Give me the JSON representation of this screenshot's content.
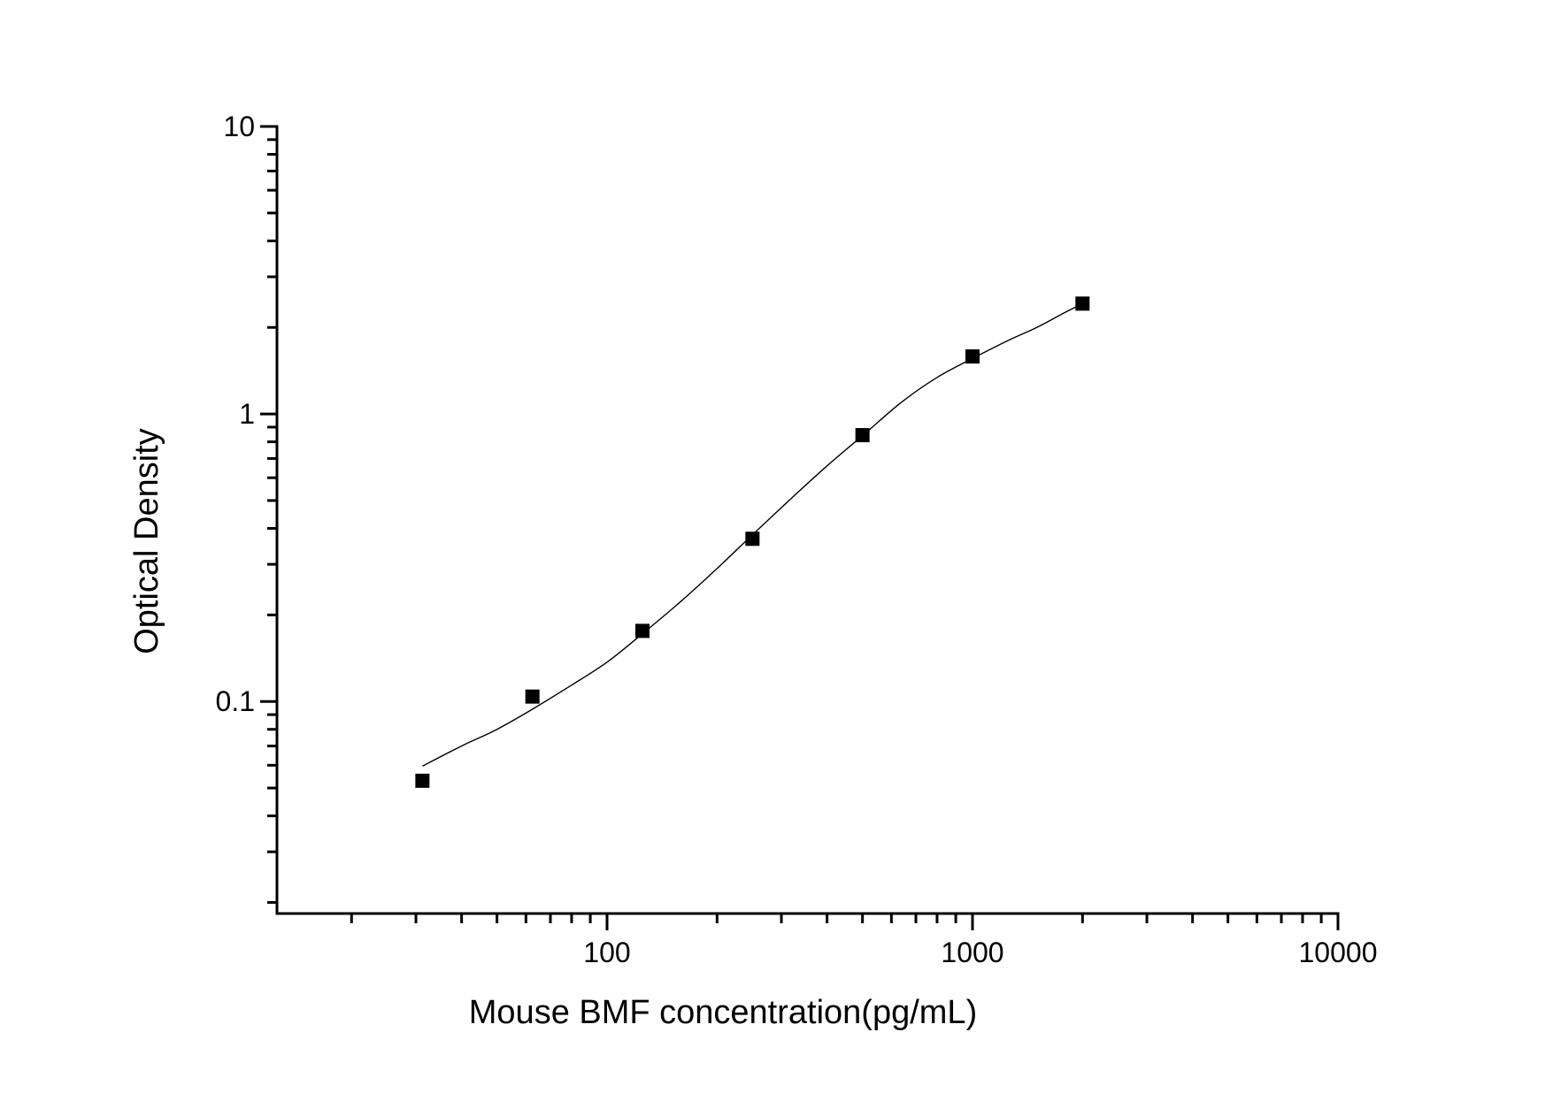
{
  "chart_data": {
    "type": "scatter",
    "title": "",
    "xlabel": "Mouse BMF concentration(pg/mL)",
    "ylabel": "Optical Density",
    "xscale": "log",
    "yscale": "log",
    "xlim": [
      12.5,
      10000
    ],
    "ylim": [
      0.0183,
      10
    ],
    "grid": false,
    "legend": null,
    "x_ticks": [
      {
        "value": 100,
        "label": "100"
      },
      {
        "value": 1000,
        "label": "1000"
      },
      {
        "value": 10000,
        "label": "10000"
      }
    ],
    "y_ticks": [
      {
        "value": 0.1,
        "label": "0.1"
      },
      {
        "value": 1,
        "label": "1"
      },
      {
        "value": 10,
        "label": "10"
      }
    ],
    "series": [
      {
        "name": "Standard points",
        "marker": "square",
        "color": "#000000",
        "x": [
          31.25,
          62.5,
          125,
          250,
          500,
          1000,
          2000
        ],
        "y": [
          0.053,
          0.104,
          0.176,
          0.368,
          0.844,
          1.585,
          2.42
        ]
      },
      {
        "name": "Fitted curve",
        "marker": "none",
        "line": "solid",
        "color": "#000000",
        "x": [
          31.25,
          40,
          50,
          62.5,
          80,
          100,
          125,
          160,
          200,
          250,
          320,
          400,
          500,
          640,
          800,
          1000,
          1250,
          1500,
          1750,
          2000
        ],
        "y": [
          0.0596,
          0.07,
          0.08,
          0.094,
          0.114,
          0.137,
          0.172,
          0.224,
          0.29,
          0.38,
          0.51,
          0.66,
          0.84,
          1.1,
          1.34,
          1.56,
          1.8,
          2.0,
          2.22,
          2.42
        ]
      }
    ]
  }
}
